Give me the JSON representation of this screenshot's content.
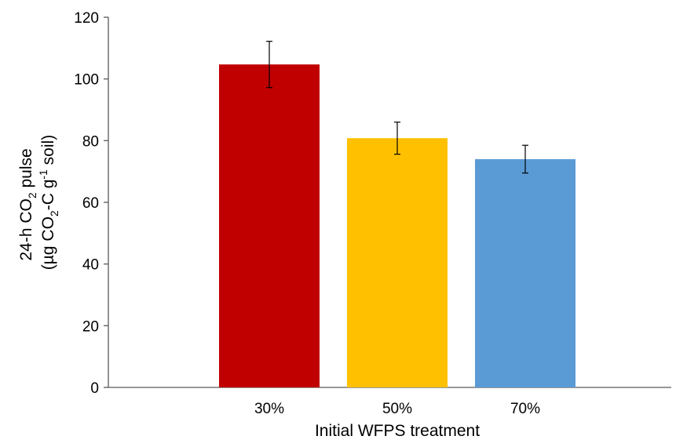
{
  "chart_data": {
    "type": "bar",
    "title": "",
    "xlabel": "Initial WFPS treatment",
    "ylabel": {
      "line1_main": "24-h CO",
      "line1_sub": "2",
      "line1_tail": " pulse",
      "line2_open": "(µg CO",
      "line2_sub": "2",
      "line2_mid": "-C g",
      "line2_sup": "-1",
      "line2_tail": " soil)"
    },
    "categories": [
      "30%",
      "50%",
      "70%"
    ],
    "values": [
      104.7,
      80.8,
      74.0
    ],
    "error": [
      7.5,
      5.2,
      4.5
    ],
    "colors": [
      "#C00000",
      "#FFC000",
      "#5B9BD5"
    ],
    "ylim": [
      0,
      120
    ],
    "yticks": [
      0,
      20,
      40,
      60,
      80,
      100,
      120
    ],
    "ytick_labels": [
      "0",
      "20",
      "40",
      "60",
      "80",
      "100",
      "120"
    ],
    "grid": false,
    "legend": "none"
  }
}
